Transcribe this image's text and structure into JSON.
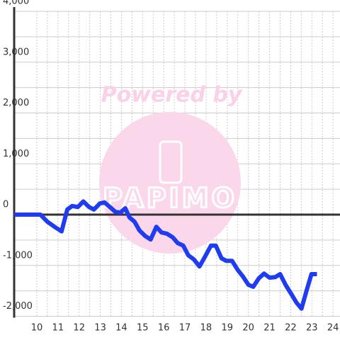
{
  "chart_data": {
    "type": "line",
    "watermark": {
      "text": "Powered by",
      "logo": "PAPIMO"
    },
    "x": [
      8.93,
      10.17,
      10.5,
      10.84,
      11.17,
      11.44,
      11.67,
      11.94,
      12.2,
      12.47,
      12.7,
      12.98,
      13.2,
      13.48,
      13.71,
      13.95,
      14.18,
      14.38,
      14.62,
      14.85,
      15.12,
      15.38,
      15.65,
      15.89,
      16.15,
      16.42,
      16.66,
      16.92,
      17.16,
      17.42,
      17.69,
      17.96,
      18.23,
      18.46,
      18.73,
      18.96,
      19.23,
      19.5,
      19.73,
      20,
      20.23,
      20.5,
      20.74,
      21,
      21.27,
      21.5,
      21.77,
      22.04,
      22.27,
      22.51,
      22.74,
      22.98,
      23.24
    ],
    "series": [
      {
        "color": "#1f3cf0",
        "values": [
          0,
          0,
          -140,
          -240,
          -330,
          100,
          170,
          150,
          260,
          150,
          100,
          220,
          240,
          140,
          55,
          40,
          125,
          -55,
          -140,
          -310,
          -420,
          -490,
          -240,
          -350,
          -375,
          -445,
          -560,
          -610,
          -800,
          -880,
          -1020,
          -820,
          -610,
          -610,
          -860,
          -910,
          -910,
          -1090,
          -1210,
          -1380,
          -1420,
          -1250,
          -1160,
          -1240,
          -1230,
          -1170,
          -1390,
          -1570,
          -1730,
          -1850,
          -1510,
          -1170,
          -1170
        ]
      }
    ],
    "xlim": [
      8.93,
      24.33
    ],
    "xticks": [
      10,
      11,
      12,
      13,
      14,
      15,
      16,
      17,
      18,
      19,
      20,
      21,
      22,
      23,
      24
    ],
    "ylim": [
      -2000,
      4000
    ],
    "yticks": [
      {
        "value": -2000,
        "label": "-2,000"
      },
      {
        "value": -1000,
        "label": "-1,000"
      },
      0,
      {
        "value": 1000,
        "label": "1,000"
      },
      {
        "value": 2000,
        "label": "2,000"
      },
      {
        "value": 3000,
        "label": "3,000"
      },
      {
        "value": 4000,
        "label": "4,000"
      }
    ],
    "grid": true
  }
}
